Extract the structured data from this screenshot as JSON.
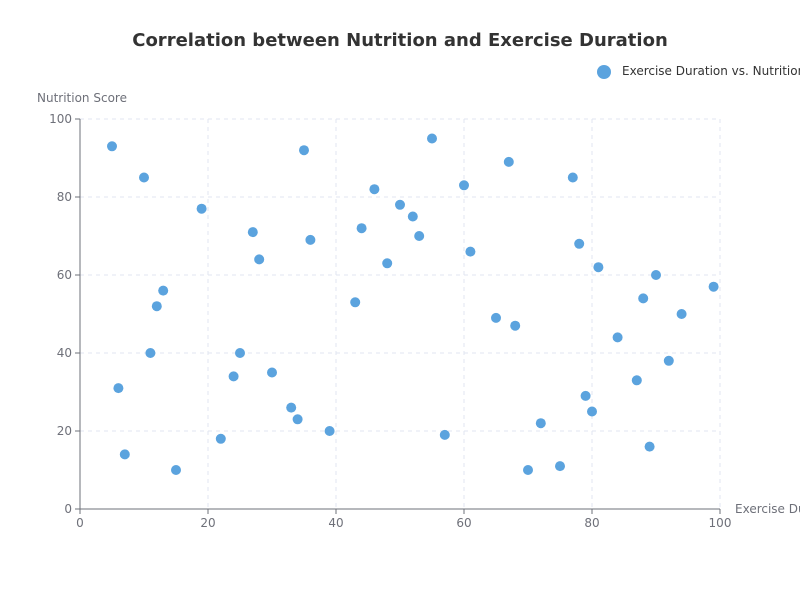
{
  "chart_data": {
    "type": "scatter",
    "title": "Correlation between Nutrition and Exercise Duration",
    "xlabel": "Exercise Duration",
    "ylabel": "Nutrition Score",
    "xlim": [
      0,
      100
    ],
    "ylim": [
      0,
      100
    ],
    "xticks": [
      0,
      20,
      40,
      60,
      80,
      100
    ],
    "yticks": [
      0,
      20,
      40,
      60,
      80,
      100
    ],
    "grid": true,
    "legend_position": "top-right",
    "series": [
      {
        "name": "Exercise Duration vs. Nutrition",
        "color": "#5ba3de",
        "points": [
          [
            5,
            93
          ],
          [
            6,
            31
          ],
          [
            7,
            14
          ],
          [
            10,
            85
          ],
          [
            11,
            40
          ],
          [
            12,
            52
          ],
          [
            13,
            56
          ],
          [
            15,
            10
          ],
          [
            19,
            77
          ],
          [
            22,
            18
          ],
          [
            24,
            34
          ],
          [
            25,
            40
          ],
          [
            27,
            71
          ],
          [
            28,
            64
          ],
          [
            30,
            35
          ],
          [
            33,
            26
          ],
          [
            34,
            23
          ],
          [
            35,
            92
          ],
          [
            36,
            69
          ],
          [
            39,
            20
          ],
          [
            43,
            53
          ],
          [
            44,
            72
          ],
          [
            46,
            82
          ],
          [
            48,
            63
          ],
          [
            50,
            78
          ],
          [
            52,
            75
          ],
          [
            53,
            70
          ],
          [
            55,
            95
          ],
          [
            57,
            19
          ],
          [
            60,
            83
          ],
          [
            61,
            66
          ],
          [
            65,
            49
          ],
          [
            67,
            89
          ],
          [
            68,
            47
          ],
          [
            70,
            10
          ],
          [
            72,
            22
          ],
          [
            75,
            11
          ],
          [
            77,
            85
          ],
          [
            78,
            68
          ],
          [
            79,
            29
          ],
          [
            80,
            25
          ],
          [
            81,
            62
          ],
          [
            84,
            44
          ],
          [
            87,
            33
          ],
          [
            88,
            54
          ],
          [
            89,
            16
          ],
          [
            90,
            60
          ],
          [
            92,
            38
          ],
          [
            94,
            50
          ],
          [
            99,
            57
          ]
        ]
      }
    ]
  }
}
